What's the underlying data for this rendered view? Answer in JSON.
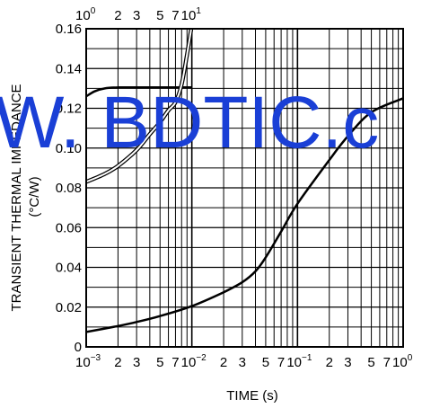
{
  "chart_data": {
    "type": "line",
    "title": "",
    "xlabel": "TIME (s)",
    "ylabel_line1": "TRANSIENT THERMAL IMPEDANCE",
    "ylabel_line2": "(°C/W)",
    "x_scale": "log",
    "xlim": [
      0.001,
      1
    ],
    "ylim": [
      0,
      0.16
    ],
    "grid": true,
    "y_ticks": [
      {
        "value": 0,
        "label": "0"
      },
      {
        "value": 0.02,
        "label": "0.02"
      },
      {
        "value": 0.04,
        "label": "0.04"
      },
      {
        "value": 0.06,
        "label": "0.06"
      },
      {
        "value": 0.08,
        "label": "0.08"
      },
      {
        "value": 0.1,
        "label": "0.10"
      },
      {
        "value": 0.12,
        "label": "0.12"
      },
      {
        "value": 0.14,
        "label": "0.14"
      },
      {
        "value": 0.16,
        "label": "0.16"
      }
    ],
    "x_ticks_bottom": [
      {
        "value": 0.001,
        "base": "10",
        "exp": "−3"
      },
      {
        "value": 0.002,
        "label": "2"
      },
      {
        "value": 0.003,
        "label": "3"
      },
      {
        "value": 0.005,
        "label": "5"
      },
      {
        "value": 0.007,
        "label": "7"
      },
      {
        "value": 0.01,
        "base": "10",
        "exp": "−2"
      },
      {
        "value": 0.02,
        "label": "2"
      },
      {
        "value": 0.03,
        "label": "3"
      },
      {
        "value": 0.05,
        "label": "5"
      },
      {
        "value": 0.07,
        "label": "7"
      },
      {
        "value": 0.1,
        "base": "10",
        "exp": "−1"
      },
      {
        "value": 0.2,
        "label": "2"
      },
      {
        "value": 0.3,
        "label": "3"
      },
      {
        "value": 0.5,
        "label": "5"
      },
      {
        "value": 0.7,
        "label": "7"
      },
      {
        "value": 1,
        "base": "10",
        "exp": "0"
      }
    ],
    "x_ticks_top": [
      {
        "value": 1,
        "base": "10",
        "exp": "0"
      },
      {
        "value": 2,
        "label": "2"
      },
      {
        "value": 3,
        "label": "3"
      },
      {
        "value": 5,
        "label": "5"
      },
      {
        "value": 7,
        "label": "7"
      },
      {
        "value": 10,
        "base": "10",
        "exp": "1"
      }
    ],
    "top_axis_xlim": [
      1,
      10
    ],
    "series": [
      {
        "style": "solid",
        "x": [
          0.001,
          0.002,
          0.003,
          0.005,
          0.01,
          0.02,
          0.03,
          0.04,
          0.05,
          0.07,
          0.1,
          0.2,
          0.3,
          0.5,
          1
        ],
        "y": [
          0.0075,
          0.0105,
          0.0125,
          0.0155,
          0.0205,
          0.0275,
          0.0325,
          0.038,
          0.045,
          0.058,
          0.072,
          0.094,
          0.106,
          0.118,
          0.125
        ]
      },
      {
        "style": "solid",
        "x": [
          1,
          1.2,
          1.5,
          2,
          3,
          5,
          7,
          10
        ],
        "y": [
          0.126,
          0.1285,
          0.13,
          0.1305,
          0.1305,
          0.1305,
          0.1305,
          0.1305
        ]
      },
      {
        "style": "double",
        "x": [
          1,
          1.5,
          2,
          3,
          4,
          5,
          6,
          7,
          8,
          9,
          10
        ],
        "y": [
          0.083,
          0.087,
          0.091,
          0.099,
          0.107,
          0.113,
          0.119,
          0.123,
          0.132,
          0.147,
          0.162
        ]
      }
    ]
  },
  "watermark": {
    "text": "W. BDTIC.c",
    "color": "#1a3fd6"
  }
}
